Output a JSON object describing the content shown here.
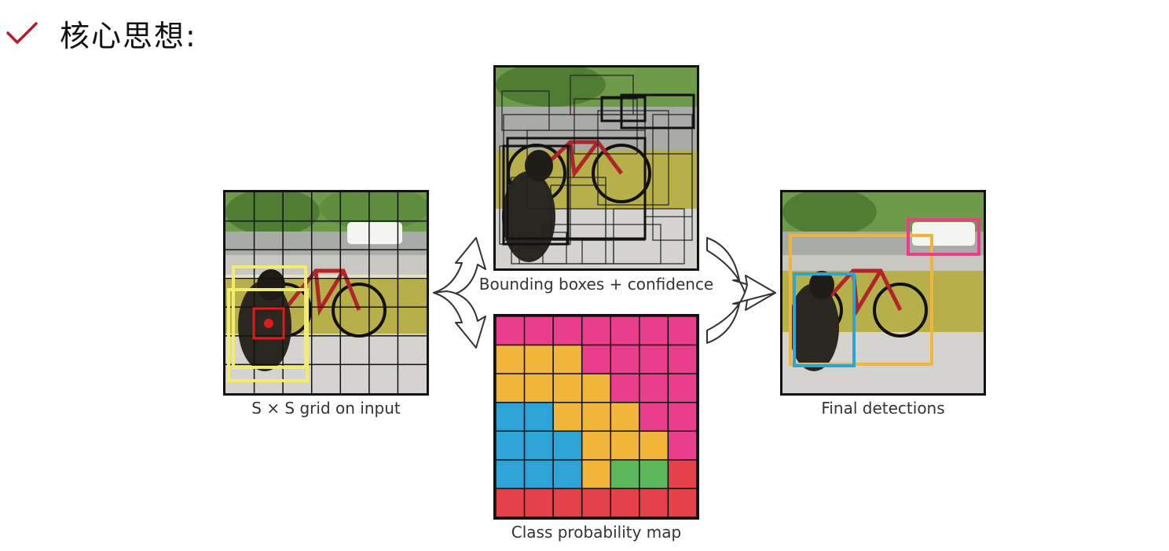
{
  "header": {
    "title": "核心思想:",
    "icon": "checkmark-icon"
  },
  "panels": {
    "input": {
      "caption": "S × S grid on input",
      "grid_size": 7
    },
    "boxes": {
      "caption": "Bounding boxes + confidence"
    },
    "probability": {
      "caption": "Class probability map"
    },
    "final": {
      "caption": "Final detections"
    }
  },
  "colors": {
    "accent_check": "#c0182a",
    "class_dog": "#2ea3d6",
    "class_bicycle": "#f0b53a",
    "class_car": "#e83e8c",
    "class_dining_table": "#e4414a",
    "class_other": "#5cb85c"
  },
  "probability_map": [
    [
      "car",
      "car",
      "car",
      "car",
      "car",
      "car",
      "car"
    ],
    [
      "bicycle",
      "bicycle",
      "bicycle",
      "car",
      "car",
      "car",
      "car"
    ],
    [
      "bicycle",
      "bicycle",
      "bicycle",
      "bicycle",
      "car",
      "car",
      "car"
    ],
    [
      "dog",
      "dog",
      "bicycle",
      "bicycle",
      "bicycle",
      "car",
      "car"
    ],
    [
      "dog",
      "dog",
      "dog",
      "bicycle",
      "bicycle",
      "bicycle",
      "car"
    ],
    [
      "dog",
      "dog",
      "dog",
      "bicycle",
      "other",
      "other",
      "table"
    ],
    [
      "table",
      "table",
      "table",
      "table",
      "table",
      "table",
      "table"
    ]
  ]
}
